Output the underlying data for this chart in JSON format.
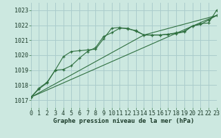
{
  "background_color": "#cce8e0",
  "grid_color": "#aacccc",
  "line_color": "#2d6e3e",
  "xlabel": "Graphe pression niveau de la mer (hPa)",
  "xlim": [
    0,
    23
  ],
  "ylim": [
    1016.5,
    1023.5
  ],
  "yticks": [
    1017,
    1018,
    1019,
    1020,
    1021,
    1022,
    1023
  ],
  "xticks": [
    0,
    1,
    2,
    3,
    4,
    5,
    6,
    7,
    8,
    9,
    10,
    11,
    12,
    13,
    14,
    15,
    16,
    17,
    18,
    19,
    20,
    21,
    22,
    23
  ],
  "series1_x": [
    0,
    1,
    2,
    3,
    4,
    5,
    6,
    7,
    8,
    9,
    10,
    11,
    12,
    13,
    14,
    15,
    16,
    17,
    18,
    19,
    20,
    21,
    22,
    23
  ],
  "series1_y": [
    1017.2,
    1017.8,
    1018.2,
    1019.0,
    1019.9,
    1020.25,
    1020.3,
    1020.35,
    1020.4,
    1021.1,
    1021.8,
    1021.85,
    1021.75,
    1021.65,
    1021.35,
    1021.35,
    1021.35,
    1021.4,
    1021.45,
    1021.55,
    1021.95,
    1022.05,
    1022.35,
    1022.65
  ],
  "series2_x": [
    0,
    1,
    2,
    3,
    4,
    5,
    6,
    7,
    8,
    9,
    10,
    11,
    12,
    13,
    14,
    15,
    16,
    17,
    18,
    19,
    20,
    21,
    22,
    23
  ],
  "series2_y": [
    1017.2,
    1017.75,
    1018.15,
    1019.0,
    1019.05,
    1019.3,
    1019.8,
    1020.25,
    1020.5,
    1021.25,
    1021.5,
    1021.8,
    1021.8,
    1021.6,
    1021.35,
    1021.35,
    1021.35,
    1021.4,
    1021.5,
    1021.6,
    1021.95,
    1022.1,
    1022.15,
    1023.0
  ],
  "series3_x": [
    0,
    23
  ],
  "series3_y": [
    1017.2,
    1022.65
  ],
  "series4_x": [
    0,
    14,
    23
  ],
  "series4_y": [
    1017.2,
    1021.35,
    1022.65
  ],
  "xlabel_fontsize": 6.5,
  "tick_fontsize": 6.0
}
